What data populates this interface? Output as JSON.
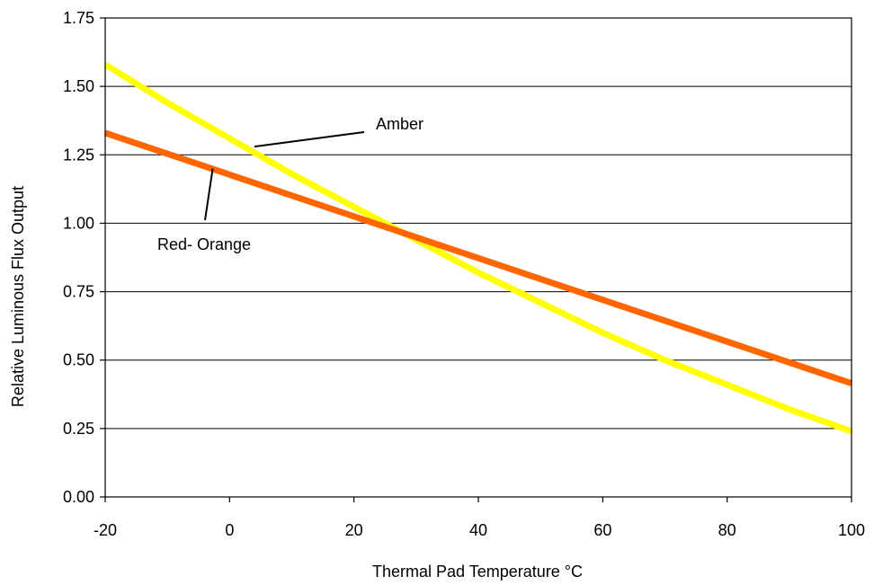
{
  "chart_data": {
    "type": "line",
    "title": "",
    "xlabel": "Thermal Pad Temperature °C",
    "ylabel": "Relative Luminous Flux Output",
    "xlim": [
      -20,
      100
    ],
    "ylim": [
      0,
      1.75
    ],
    "x_ticks": [
      -20,
      0,
      20,
      40,
      60,
      80,
      100
    ],
    "x_tick_labels": [
      "-20",
      "0",
      "20",
      "40",
      "60",
      "80",
      "100"
    ],
    "y_ticks": [
      0,
      0.25,
      0.5,
      0.75,
      1.0,
      1.25,
      1.5,
      1.75
    ],
    "y_tick_labels": [
      "0.00",
      "0.25",
      "0.50",
      "0.75",
      "1.00",
      "1.25",
      "1.50",
      "1.75"
    ],
    "grid": "horizontal",
    "legend": "none",
    "series": [
      {
        "name": "Amber",
        "color": "#ffff00",
        "x": [
          -20,
          -10,
          0,
          10,
          20,
          30,
          40,
          50,
          60,
          70,
          80,
          90,
          100
        ],
        "y": [
          1.58,
          1.44,
          1.31,
          1.18,
          1.06,
          0.94,
          0.82,
          0.71,
          0.6,
          0.5,
          0.41,
          0.32,
          0.24
        ]
      },
      {
        "name": "Red- Orange",
        "color": "#ff6600",
        "x": [
          -20,
          100
        ],
        "y": [
          1.33,
          0.415
        ]
      }
    ],
    "annotations": [
      {
        "text": "Amber",
        "series": "Amber",
        "x": 4,
        "y": 1.28
      },
      {
        "text": "Red- Orange",
        "series": "Red- Orange",
        "x": -3,
        "y": 1.2
      }
    ]
  }
}
